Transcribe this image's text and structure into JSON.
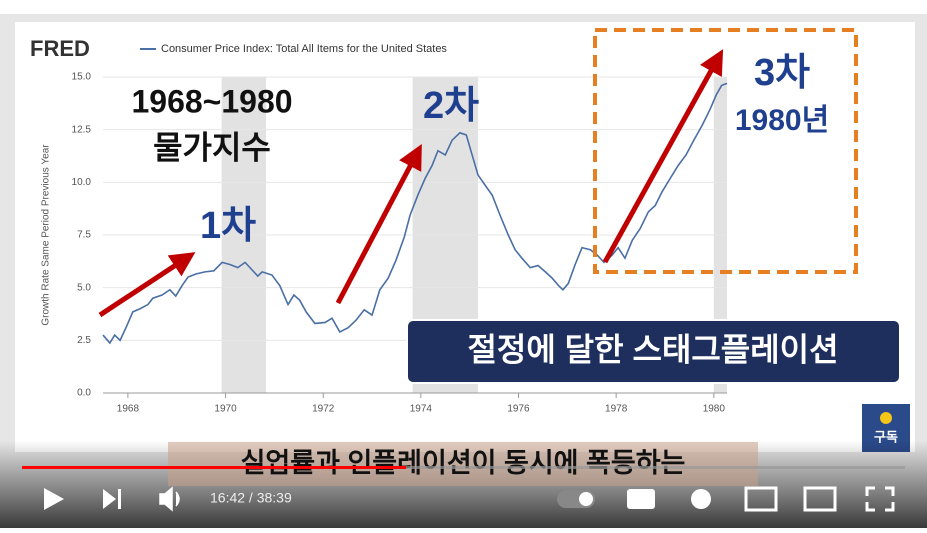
{
  "chart_data": {
    "type": "line",
    "brand": "FRED",
    "y_label": "Growth Rate Same Period Previous Year",
    "series": [
      {
        "name": "Consumer Price Index: Total All Items for the United States",
        "color": "#4a6fa5",
        "values": [
          2.75,
          2.37,
          2.75,
          2.5,
          3.2,
          3.85,
          4.0,
          4.2,
          4.5,
          4.65,
          4.9,
          4.6,
          5.1,
          5.5,
          5.65,
          5.75,
          5.8,
          6.2,
          6.1,
          5.95,
          6.2,
          5.85,
          5.55,
          5.75,
          5.6,
          5.1,
          4.2,
          4.65,
          4.4,
          3.85,
          3.3,
          3.35,
          3.55,
          2.9,
          3.1,
          3.45,
          3.95,
          3.7,
          4.9,
          5.45,
          6.3,
          7.4,
          8.45,
          9.4,
          10.2,
          10.8,
          11.5,
          11.3,
          12.0,
          12.35,
          12.25,
          11.3,
          10.35,
          9.85,
          9.4,
          8.45,
          7.5,
          6.8,
          6.4,
          5.95,
          6.05,
          5.75,
          5.45,
          5.1,
          4.9,
          5.2,
          6.1,
          6.9,
          6.8,
          6.55,
          6.2,
          6.55,
          6.9,
          6.4,
          7.25,
          7.8,
          8.6,
          8.9,
          9.55,
          10.2,
          10.8,
          11.3,
          12.0,
          12.7,
          13.5,
          14.15,
          14.6,
          14.7
        ]
      }
    ],
    "x": [
      1967.49,
      1967.63,
      1967.73,
      1967.84,
      1967.98,
      1968.1,
      1968.25,
      1968.41,
      1968.51,
      1968.7,
      1968.86,
      1968.98,
      1969.11,
      1969.23,
      1969.39,
      1969.58,
      1969.76,
      1969.93,
      1970.09,
      1970.25,
      1970.4,
      1970.54,
      1970.66,
      1970.75,
      1970.95,
      1971.11,
      1971.28,
      1971.4,
      1971.52,
      1971.65,
      1971.83,
      1972.04,
      1972.18,
      1972.34,
      1972.51,
      1972.67,
      1972.84,
      1973.0,
      1973.16,
      1973.33,
      1973.49,
      1973.66,
      1973.78,
      1973.94,
      1974.09,
      1974.23,
      1974.35,
      1974.5,
      1974.64,
      1974.8,
      1974.93,
      1975.05,
      1975.17,
      1975.32,
      1975.46,
      1975.62,
      1975.79,
      1975.93,
      1976.07,
      1976.24,
      1976.4,
      1976.55,
      1976.69,
      1976.82,
      1976.91,
      1977.02,
      1977.16,
      1977.3,
      1977.47,
      1977.61,
      1977.75,
      1977.92,
      1978.04,
      1978.18,
      1978.33,
      1978.49,
      1978.66,
      1978.8,
      1978.94,
      1979.11,
      1979.27,
      1979.43,
      1979.59,
      1979.76,
      1979.93,
      1980.05,
      1980.16,
      1980.27
    ],
    "recessions": [
      [
        1969.92,
        1970.83
      ],
      [
        1973.83,
        1975.17
      ],
      [
        1980.0,
        1980.27
      ]
    ],
    "xlim": [
      1967.49,
      1980.27
    ],
    "ylim": [
      0,
      15
    ],
    "xticks": [
      1968,
      1970,
      1972,
      1974,
      1976,
      1978,
      1980
    ],
    "yticks": [
      {
        "value": 0,
        "label": "0.0"
      },
      2.5,
      {
        "value": 5,
        "label": "5.0"
      },
      7.5,
      {
        "value": 10,
        "label": "10.0"
      },
      12.5,
      {
        "value": 15,
        "label": "15.0"
      }
    ]
  },
  "overlay": {
    "heading": [
      "1968~1980",
      "물가지수"
    ],
    "phase1": "1차",
    "phase2": "2차",
    "phase3": "3차",
    "phase3_year": "1980년",
    "banner": "절정에 달한 스태그플레이션",
    "caption": "실업률과 인플레이션이 동시에 폭등하는",
    "subscribe": "구독"
  },
  "player": {
    "time": "16:42 / 38:39"
  }
}
